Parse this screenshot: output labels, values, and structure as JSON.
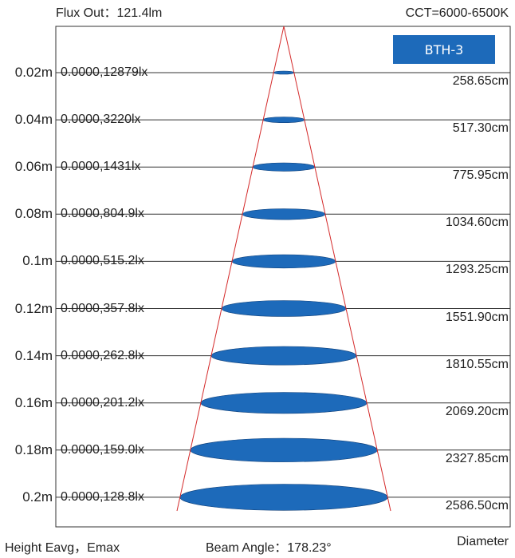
{
  "header": {
    "flux": "Flux Out：121.4lm",
    "cct": "CCT=6000-6500K"
  },
  "badge": "BTH-3",
  "rows": [
    {
      "height": "0.02m",
      "lux": "0.0000,12879lx",
      "diameter": "258.65cm"
    },
    {
      "height": "0.04m",
      "lux": "0.0000,3220lx",
      "diameter": "517.30cm"
    },
    {
      "height": "0.06m",
      "lux": "0.0000,1431lx",
      "diameter": "775.95cm"
    },
    {
      "height": "0.08m",
      "lux": "0.0000,804.9lx",
      "diameter": "1034.60cm"
    },
    {
      "height": "0.1m",
      "lux": "0.0000,515.2lx",
      "diameter": "1293.25cm"
    },
    {
      "height": "0.12m",
      "lux": "0.0000,357.8lx",
      "diameter": "1551.90cm"
    },
    {
      "height": "0.14m",
      "lux": "0.0000,262.8lx",
      "diameter": "1810.55cm"
    },
    {
      "height": "0.16m",
      "lux": "0.0000,201.2lx",
      "diameter": "2069.20cm"
    },
    {
      "height": "0.18m",
      "lux": "0.0000,159.0lx",
      "diameter": "2327.85cm"
    },
    {
      "height": "0.2m",
      "lux": "0.0000,128.8lx",
      "diameter": "2586.50cm"
    }
  ],
  "footer": {
    "labels": "Height  Eavg，Emax",
    "beam": "Beam Angle：178.23°",
    "diameter": "Diameter"
  },
  "colors": {
    "beam_line": "#d42a2a",
    "spot_fill": "#1d6aba",
    "grid": "#333333"
  }
}
